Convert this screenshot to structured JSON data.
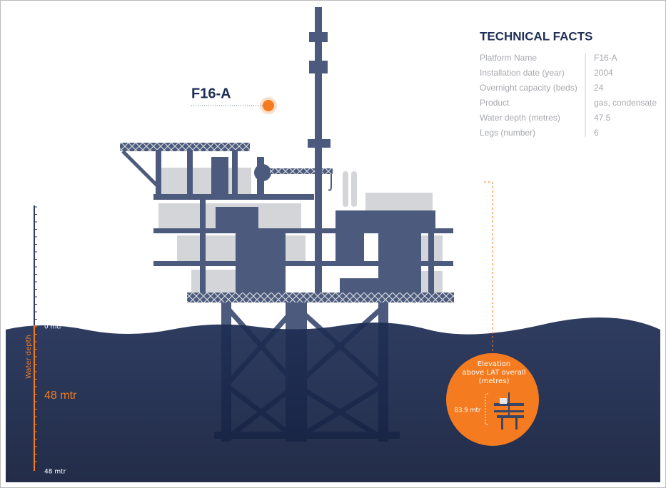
{
  "platform_label": "F16-A",
  "technical_facts": {
    "title": "TECHNICAL FACTS",
    "rows": [
      [
        "Platform Name",
        "F16-A"
      ],
      [
        "Installation date (year)",
        "2004"
      ],
      [
        "Overnight capacity (beds)",
        "24"
      ],
      [
        "Product",
        "gas, condensate"
      ],
      [
        "Water depth (metres)",
        "47.5"
      ],
      [
        "Legs (number)",
        "6"
      ]
    ]
  },
  "depth_scale": {
    "top_label": "0 mtr",
    "bottom_label": "48 mtr",
    "axis_title": "Water depth",
    "depth_label": "48 mtr"
  },
  "elevation": {
    "lines": [
      "Elevation",
      "above LAT overall",
      "(metres)"
    ],
    "value_label": "83.9 mtr"
  }
}
